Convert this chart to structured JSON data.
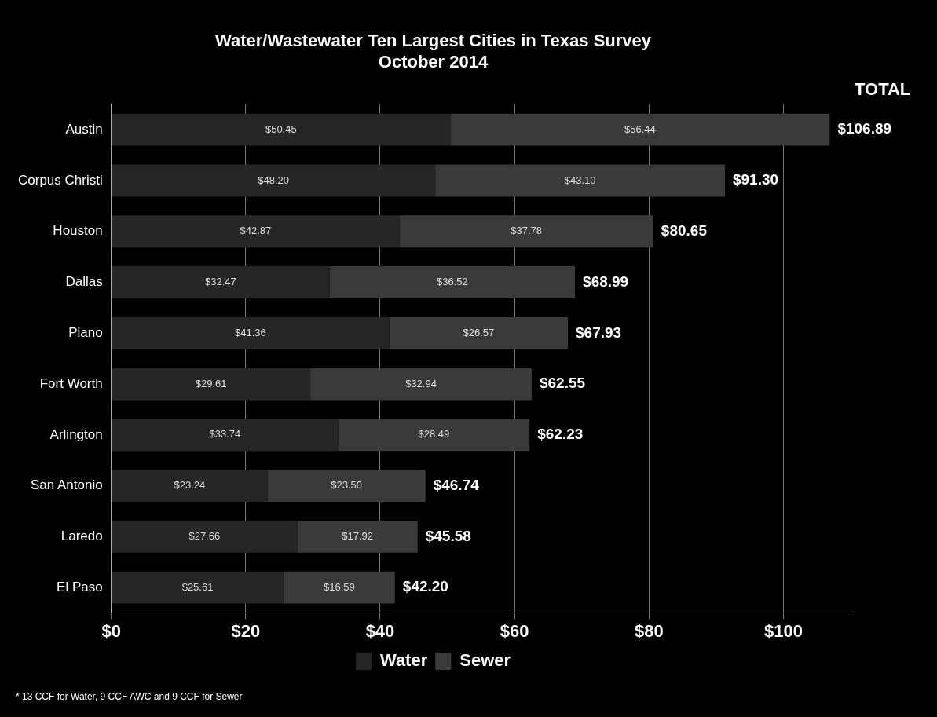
{
  "chart_data": {
    "type": "bar",
    "orientation": "horizontal",
    "stacked": true,
    "title": "Water/Wastewater Ten Largest Cities in Texas Survey\nOctober 2014",
    "categories": [
      "Austin",
      "Corpus Christi",
      "Houston",
      "Dallas",
      "Plano",
      "Fort Worth",
      "Arlington",
      "San Antonio",
      "Laredo",
      "El Paso"
    ],
    "series": [
      {
        "name": "Water",
        "color": "#262626",
        "values": [
          50.45,
          48.2,
          42.87,
          32.47,
          41.36,
          29.61,
          33.74,
          23.24,
          27.66,
          25.61
        ],
        "value_labels": [
          "$50.45",
          "$48.20",
          "$42.87",
          "$32.47",
          "$41.36",
          "$29.61",
          "$33.74",
          "$23.24",
          "$27.66",
          "$25.61"
        ]
      },
      {
        "name": "Sewer",
        "color": "#3a3a3a",
        "values": [
          56.44,
          43.1,
          37.78,
          36.52,
          26.57,
          32.94,
          28.49,
          23.5,
          17.92,
          16.59
        ],
        "value_labels": [
          "$56.44",
          "$43.10",
          "$37.78",
          "$36.52",
          "$26.57",
          "$32.94",
          "$28.49",
          "$23.50",
          "$17.92",
          "$16.59"
        ]
      }
    ],
    "totals": [
      "$106.89",
      "$91.30",
      "$80.65",
      "$68.99",
      "$67.93",
      "$62.55",
      "$62.23",
      "$46.74",
      "$45.58",
      "$42.20"
    ],
    "xlim": [
      0,
      110
    ],
    "xticks": [
      {
        "value": 0,
        "label": "$0"
      },
      {
        "value": 20,
        "label": "$20"
      },
      {
        "value": 40,
        "label": "$40"
      },
      {
        "value": 60,
        "label": "$60"
      },
      {
        "value": 80,
        "label": "$80"
      },
      {
        "value": 100,
        "label": "$100"
      }
    ],
    "grid": "x",
    "legend": "bottom",
    "annotations": [
      "TOTAL",
      "* 13 CCF for Water, 9 CCF AWC and 9 CCF for Sewer"
    ]
  }
}
